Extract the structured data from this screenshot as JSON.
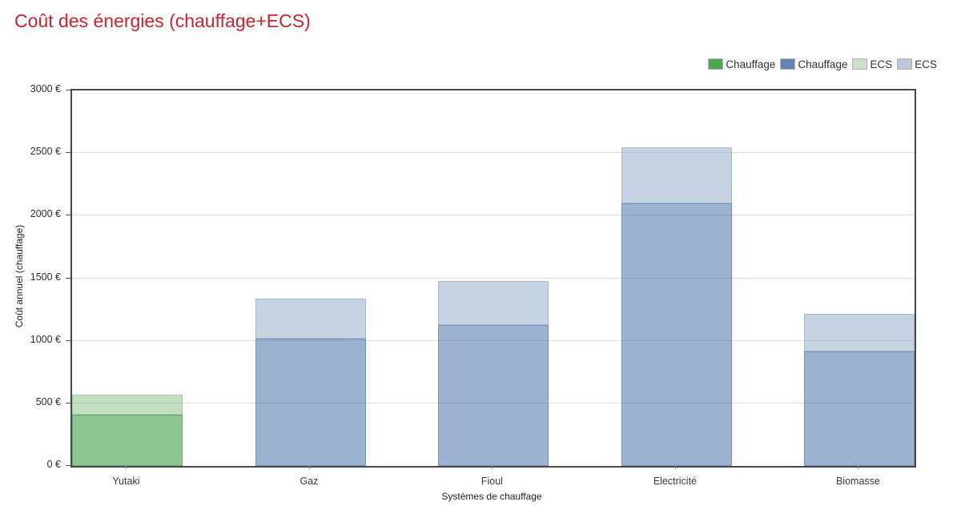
{
  "title": {
    "text": "Coût des énergies (chauffage+ECS)",
    "color": "#cf212e"
  },
  "legend": {
    "position": "top-right",
    "items": [
      {
        "label": "Chauffage",
        "swatch": "#4ea655"
      },
      {
        "label": "Chauffage",
        "swatch": "#6185b2"
      },
      {
        "label": "ECS",
        "swatch": "#c8e3c5"
      },
      {
        "label": "ECS",
        "swatch": "#bac9da"
      }
    ]
  },
  "chart_data": {
    "type": "bar",
    "stacked": true,
    "title": "Coût des énergies (chauffage+ECS)",
    "categories": [
      "Yutaki",
      "Gaz",
      "Fioul",
      "Electricité",
      "Biomasse"
    ],
    "series": [
      {
        "name": "Chauffage",
        "swatch": "#4ea655",
        "fill": "rgba(70,160,80,0.62)",
        "border": "rgba(55,130,65,0.45)",
        "values": [
          410,
          null,
          null,
          null,
          null
        ]
      },
      {
        "name": "Chauffage",
        "swatch": "#6185b2",
        "fill": "rgba(90,128,176,0.60)",
        "border": "rgba(70,105,150,0.45)",
        "values": [
          null,
          1015,
          1125,
          2100,
          915
        ]
      },
      {
        "name": "ECS",
        "swatch": "#c8e3c5",
        "fill": "rgba(150,200,148,0.58)",
        "border": "rgba(120,175,120,0.45)",
        "values": [
          160,
          null,
          null,
          null,
          null
        ]
      },
      {
        "name": "ECS",
        "swatch": "#bac9da",
        "fill": "rgba(142,168,198,0.50)",
        "border": "rgba(120,148,180,0.40)",
        "values": [
          null,
          325,
          355,
          445,
          300
        ]
      }
    ],
    "totals": [
      570,
      1340,
      1480,
      2545,
      1215
    ],
    "xlabel": "Systèmes de chauffage",
    "ylabel": "Coût annuel (chauffage)",
    "ylim": [
      0,
      3000
    ],
    "yticks": [
      {
        "label": "0 €",
        "value": 0
      },
      {
        "label": "500 €",
        "value": 500
      },
      {
        "label": "1000 €",
        "value": 1000
      },
      {
        "label": "1500 €",
        "value": 1500
      },
      {
        "label": "2000 €",
        "value": 2000
      },
      {
        "label": "2500 €",
        "value": 2500
      },
      {
        "label": "3000 €",
        "value": 3000
      }
    ],
    "grid": "horizontal-500-steps",
    "legend_position": "top-right"
  }
}
